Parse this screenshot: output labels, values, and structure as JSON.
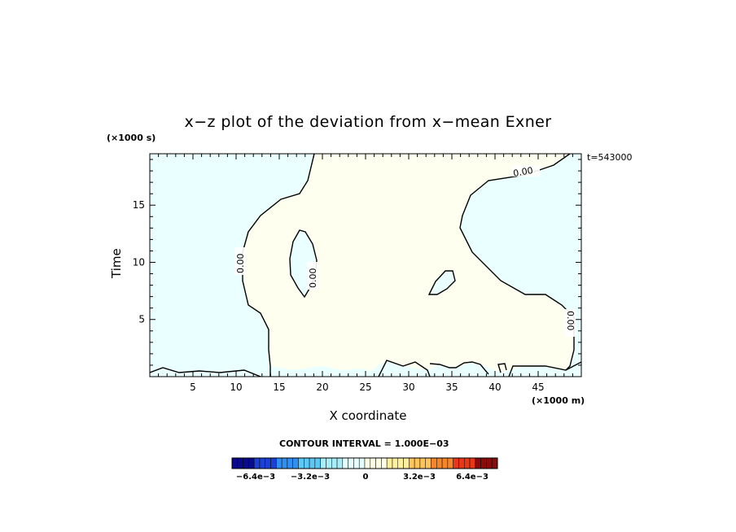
{
  "chart_data": {
    "type": "contour",
    "title": "x−z plot of the deviation from x−mean Exner",
    "xlabel": "X coordinate",
    "ylabel": "Time",
    "x_multiplier": "(×1000 m)",
    "y_multiplier": "(×1000 s)",
    "timestamp": "t=543000",
    "xlim": [
      0,
      50
    ],
    "ylim": [
      0,
      19.5
    ],
    "x_ticks": [
      5,
      10,
      15,
      20,
      25,
      30,
      35,
      40,
      45
    ],
    "y_ticks": [
      5,
      10,
      15
    ],
    "contour_interval": "CONTOUR INTERVAL = 1.000E−03",
    "contour_labels": [
      "0.00",
      "0.00",
      "0.00",
      "0.00"
    ],
    "colorbar": {
      "tick_labels": [
        "−6.4e−3",
        "−3.2e−3",
        "0",
        "3.2e−3",
        "6.4e−3"
      ],
      "colors": [
        "#0a0a8c",
        "#1c3fd6",
        "#2f8ff2",
        "#5cc8f5",
        "#a8eef8",
        "#e6ffff",
        "#ffffe6",
        "#fff0a0",
        "#fdc45c",
        "#f5862b",
        "#e83818",
        "#8c0a0a"
      ]
    },
    "regions": [
      {
        "sign": "negative",
        "color": "#eaffff"
      },
      {
        "sign": "positive",
        "color": "#fffff0"
      }
    ]
  }
}
